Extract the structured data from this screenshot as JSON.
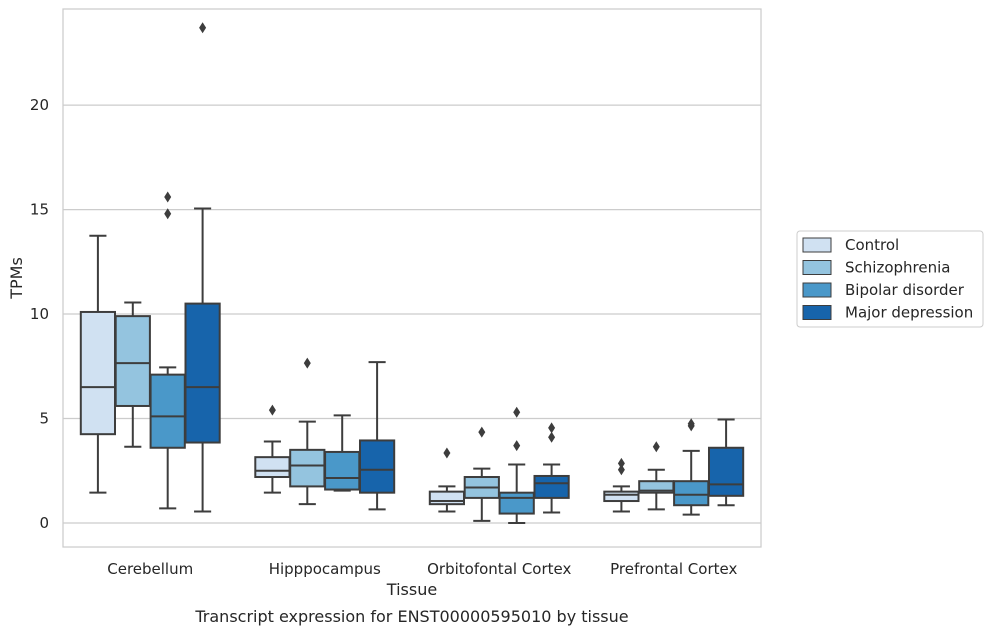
{
  "caption": "Transcript expression for ENST00000595010 by tissue",
  "chart_data": {
    "type": "box",
    "xlabel": "Tissue",
    "ylabel": "TPMs",
    "ylim": [
      -1.15,
      24.6
    ],
    "yticks": [
      0,
      5,
      10,
      15,
      20
    ],
    "grid": "horizontal",
    "legend_position": "right",
    "categories": [
      "Cerebellum",
      "Hipppocampus",
      "Orbitofontal Cortex",
      "Prefrontal Cortex"
    ],
    "series": [
      {
        "name": "Control",
        "color": "#d0e1f2",
        "boxes": [
          {
            "whislo": 1.45,
            "q1": 4.25,
            "med": 6.5,
            "q3": 10.1,
            "whishi": 13.75,
            "fliers": []
          },
          {
            "whislo": 1.45,
            "q1": 2.2,
            "med": 2.5,
            "q3": 3.15,
            "whishi": 3.9,
            "fliers": [
              5.4
            ]
          },
          {
            "whislo": 0.55,
            "q1": 0.9,
            "med": 1.05,
            "q3": 1.5,
            "whishi": 1.75,
            "fliers": [
              3.35
            ]
          },
          {
            "whislo": 0.55,
            "q1": 1.05,
            "med": 1.35,
            "q3": 1.5,
            "whishi": 1.75,
            "fliers": [
              2.55,
              2.85
            ]
          }
        ]
      },
      {
        "name": "Schizophrenia",
        "color": "#94c4df",
        "boxes": [
          {
            "whislo": 3.65,
            "q1": 5.6,
            "med": 7.65,
            "q3": 9.9,
            "whishi": 10.55,
            "fliers": []
          },
          {
            "whislo": 0.9,
            "q1": 1.75,
            "med": 2.75,
            "q3": 3.5,
            "whishi": 4.85,
            "fliers": [
              7.65
            ]
          },
          {
            "whislo": 0.1,
            "q1": 1.2,
            "med": 1.7,
            "q3": 2.2,
            "whishi": 2.6,
            "fliers": [
              4.35
            ]
          },
          {
            "whislo": 0.65,
            "q1": 1.45,
            "med": 1.55,
            "q3": 2.0,
            "whishi": 2.55,
            "fliers": [
              3.65
            ]
          }
        ]
      },
      {
        "name": "Bipolar disorder",
        "color": "#4a98c9",
        "boxes": [
          {
            "whislo": 0.7,
            "q1": 3.6,
            "med": 5.1,
            "q3": 7.1,
            "whishi": 7.45,
            "fliers": [
              14.8,
              15.6
            ]
          },
          {
            "whislo": 1.55,
            "q1": 1.6,
            "med": 2.15,
            "q3": 3.4,
            "whishi": 5.15,
            "fliers": []
          },
          {
            "whislo": 0.0,
            "q1": 0.45,
            "med": 1.2,
            "q3": 1.45,
            "whishi": 2.8,
            "fliers": [
              3.7,
              5.3
            ]
          },
          {
            "whislo": 0.4,
            "q1": 0.85,
            "med": 1.35,
            "q3": 2.0,
            "whishi": 3.45,
            "fliers": [
              4.65,
              4.75
            ]
          }
        ]
      },
      {
        "name": "Major depression",
        "color": "#1764ab",
        "boxes": [
          {
            "whislo": 0.55,
            "q1": 3.85,
            "med": 6.5,
            "q3": 10.5,
            "whishi": 15.05,
            "fliers": [
              23.7
            ]
          },
          {
            "whislo": 0.65,
            "q1": 1.45,
            "med": 2.55,
            "q3": 3.95,
            "whishi": 7.7,
            "fliers": []
          },
          {
            "whislo": 0.5,
            "q1": 1.2,
            "med": 1.9,
            "q3": 2.25,
            "whishi": 2.8,
            "fliers": [
              4.1,
              4.55
            ]
          },
          {
            "whislo": 0.85,
            "q1": 1.3,
            "med": 1.85,
            "q3": 3.6,
            "whishi": 4.95,
            "fliers": []
          }
        ]
      }
    ]
  }
}
